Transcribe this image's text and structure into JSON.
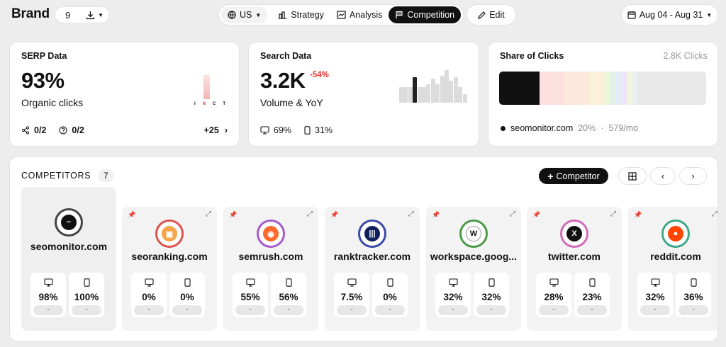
{
  "header": {
    "brand": "Brand",
    "keyword_count": "9",
    "country": "US",
    "tabs": [
      {
        "label": "Strategy",
        "icon": "strategy-icon"
      },
      {
        "label": "Analysis",
        "icon": "analysis-icon"
      },
      {
        "label": "Competition",
        "icon": "flag-icon"
      }
    ],
    "edit_label": "Edit",
    "date_range": "Aug 04 - Aug 31"
  },
  "serp": {
    "title": "SERP Data",
    "value": "93%",
    "label": "Organic clicks",
    "features": "0/2",
    "questions": "0/2",
    "more": "+25",
    "intent_letters": [
      "I",
      "N",
      "C",
      "T"
    ],
    "intent_highlight": "N"
  },
  "search": {
    "title": "Search Data",
    "value": "3.2K",
    "yoy": "-54%",
    "label": "Volume & YoY",
    "desktop": "69%",
    "mobile": "31%",
    "trend": [
      0.45,
      0.45,
      0.45,
      0.75,
      0.45,
      0.45,
      0.55,
      0.7,
      0.55,
      0.8,
      0.95,
      0.65,
      0.75,
      0.45,
      0.25
    ],
    "trend_highlight_index": 3
  },
  "share": {
    "title": "Share of Clicks",
    "total": "2.8K Clicks",
    "segments": [
      {
        "share": 0.195,
        "color": "#111111"
      },
      {
        "share": 0.12,
        "color": "#fde0e0"
      },
      {
        "share": 0.12,
        "color": "#fde9dc"
      },
      {
        "share": 0.07,
        "color": "#fbf0d8"
      },
      {
        "share": 0.03,
        "color": "#eef6d6"
      },
      {
        "share": 0.03,
        "color": "#e2f2e4"
      },
      {
        "share": 0.03,
        "color": "#e6ecf8"
      },
      {
        "share": 0.025,
        "color": "#efe4f6"
      },
      {
        "share": 0.025,
        "color": "#f3f4dc"
      },
      {
        "share": 0.025,
        "color": "#e8eef4"
      }
    ],
    "legend_domain": "seomonitor.com",
    "legend_share": "20%",
    "legend_sep": "·",
    "legend_clicks": "579/mo"
  },
  "competitors": {
    "heading": "COMPETITORS",
    "count": "7",
    "add_label": "Competitor",
    "tiles": [
      {
        "domain": "seomonitor.com",
        "ring": "#444444",
        "fill": "#111111",
        "glyph": "~",
        "desktop": "98%",
        "mobile": "100%",
        "desktop_change": "-",
        "mobile_change": "-",
        "own": true
      },
      {
        "domain": "seoranking.com",
        "ring": "#d9534f",
        "fill": "#f6a54a",
        "glyph": "▣",
        "desktop": "0%",
        "mobile": "0%",
        "desktop_change": "-",
        "mobile_change": "-",
        "own": false
      },
      {
        "domain": "semrush.com",
        "ring": "#a55bc8",
        "fill": "#ff6a2c",
        "glyph": "◉",
        "desktop": "55%",
        "mobile": "56%",
        "desktop_change": "-",
        "mobile_change": "-",
        "own": false
      },
      {
        "domain": "ranktracker.com",
        "ring": "#3a4aa8",
        "fill": "#10205a",
        "glyph": "|||",
        "desktop": "7.5%",
        "mobile": "0%",
        "desktop_change": "-",
        "mobile_change": "-",
        "own": false
      },
      {
        "domain": "workspace.goog...",
        "ring": "#4b9a48",
        "fill": "#ffffff",
        "glyph": "W",
        "desktop": "32%",
        "mobile": "32%",
        "desktop_change": "-",
        "mobile_change": "-",
        "own": false
      },
      {
        "domain": "twitter.com",
        "ring": "#d36ab8",
        "fill": "#111111",
        "glyph": "X",
        "desktop": "28%",
        "mobile": "23%",
        "desktop_change": "-",
        "mobile_change": "-",
        "own": false
      },
      {
        "domain": "reddit.com",
        "ring": "#3fa88a",
        "fill": "#ff4500",
        "glyph": "●",
        "desktop": "32%",
        "mobile": "36%",
        "desktop_change": "-",
        "mobile_change": "-",
        "own": false
      }
    ]
  }
}
